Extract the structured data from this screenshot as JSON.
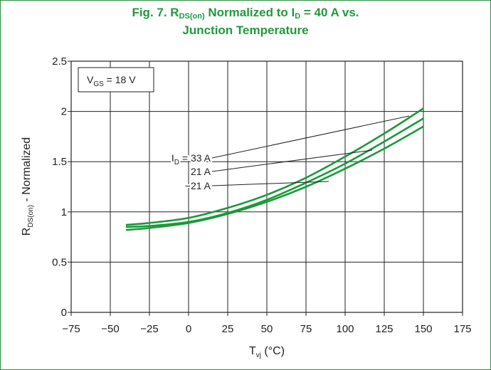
{
  "chart_data": {
    "type": "line",
    "title_parts": {
      "t1": "Fig. 7. R",
      "t1_sub": "DS(on)",
      "t2": " Normalized to I",
      "t2_sub": "D",
      "t3": " = 40 A vs.",
      "line2": "Junction Temperature"
    },
    "xlabel_parts": {
      "main": "T",
      "sub": "vj",
      "unit": " (°C)"
    },
    "ylabel_parts": {
      "main": "R",
      "sub": "DS(on)",
      "rest": " - Normalized"
    },
    "xlim": [
      -75,
      175
    ],
    "ylim": [
      0,
      2.5
    ],
    "x_ticks": [
      -75,
      -50,
      -25,
      0,
      25,
      50,
      75,
      100,
      125,
      150,
      175
    ],
    "x_tick_labels": [
      "−75",
      "−50",
      "−25",
      "0",
      "25",
      "50",
      "75",
      "100",
      "125",
      "150",
      "175"
    ],
    "y_ticks": [
      0,
      0.5,
      1,
      1.5,
      2,
      2.5
    ],
    "y_tick_labels": [
      "0",
      "0.5",
      "1",
      "1.5",
      "2",
      "2.5"
    ],
    "grid": true,
    "legend_box": {
      "main": "V",
      "sub": "GS",
      "rest": " = 18 V"
    },
    "line_color": "#1a9a3a",
    "series": [
      {
        "name": "I_D = 33 A",
        "label_main": "I",
        "label_sub": "D",
        "label_rest": " = 33 A",
        "x": [
          -40,
          -25,
          0,
          25,
          50,
          75,
          100,
          125,
          150
        ],
        "y": [
          0.87,
          0.89,
          0.94,
          1.04,
          1.17,
          1.34,
          1.55,
          1.78,
          2.03
        ]
      },
      {
        "name": "21 A",
        "label_main": "21 A",
        "label_sub": "",
        "label_rest": "",
        "x": [
          -40,
          -25,
          0,
          25,
          50,
          75,
          100,
          125,
          150
        ],
        "y": [
          0.85,
          0.86,
          0.9,
          0.99,
          1.12,
          1.29,
          1.48,
          1.7,
          1.93
        ]
      },
      {
        "name": "−21 A",
        "label_main": "−21 A",
        "label_sub": "",
        "label_rest": "",
        "x": [
          -40,
          -25,
          0,
          25,
          50,
          75,
          100,
          125,
          150
        ],
        "y": [
          0.82,
          0.84,
          0.89,
          0.98,
          1.1,
          1.25,
          1.43,
          1.63,
          1.85
        ]
      }
    ]
  }
}
